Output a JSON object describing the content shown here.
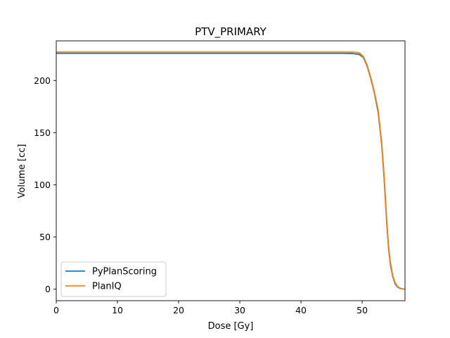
{
  "chart_data": {
    "type": "line",
    "title": "PTV_PRIMARY",
    "xlabel": "Dose [Gy]",
    "ylabel": "Volume [cc]",
    "xlim": [
      0,
      57
    ],
    "ylim": [
      -11,
      238
    ],
    "xticks": [
      0,
      10,
      20,
      30,
      40,
      50
    ],
    "yticks": [
      0,
      50,
      100,
      150,
      200
    ],
    "legend_position": "lower-left",
    "grid": false,
    "series": [
      {
        "name": "PyPlanScoring",
        "color": "#1f77b4",
        "x": [
          0,
          10,
          20,
          30,
          40,
          47,
          48.5,
          49.5,
          50.2,
          50.8,
          51.4,
          52.0,
          52.6,
          53.2,
          53.6,
          54.0,
          54.3,
          54.6,
          55.0,
          55.4,
          55.8,
          56.2,
          56.6,
          57
        ],
        "y": [
          226,
          226,
          226,
          226,
          226,
          226,
          225.8,
          225,
          222,
          214,
          202,
          188,
          170,
          138,
          105,
          65,
          40,
          24,
          12,
          5,
          2,
          0.7,
          0.2,
          0
        ]
      },
      {
        "name": "PlanIQ",
        "color": "#ff7f0e",
        "x": [
          0,
          10,
          20,
          30,
          40,
          47,
          48.5,
          49.5,
          50.2,
          50.8,
          51.4,
          52.0,
          52.6,
          53.2,
          53.6,
          54.0,
          54.3,
          54.6,
          55.0,
          55.4,
          55.8,
          56.2,
          56.6,
          57
        ],
        "y": [
          227.3,
          227.3,
          227.3,
          227.3,
          227.3,
          227.3,
          227.2,
          226.5,
          223,
          215,
          203,
          189,
          172,
          140,
          108,
          68,
          42,
          26,
          13,
          6,
          2.5,
          1,
          0.3,
          0
        ]
      }
    ]
  }
}
